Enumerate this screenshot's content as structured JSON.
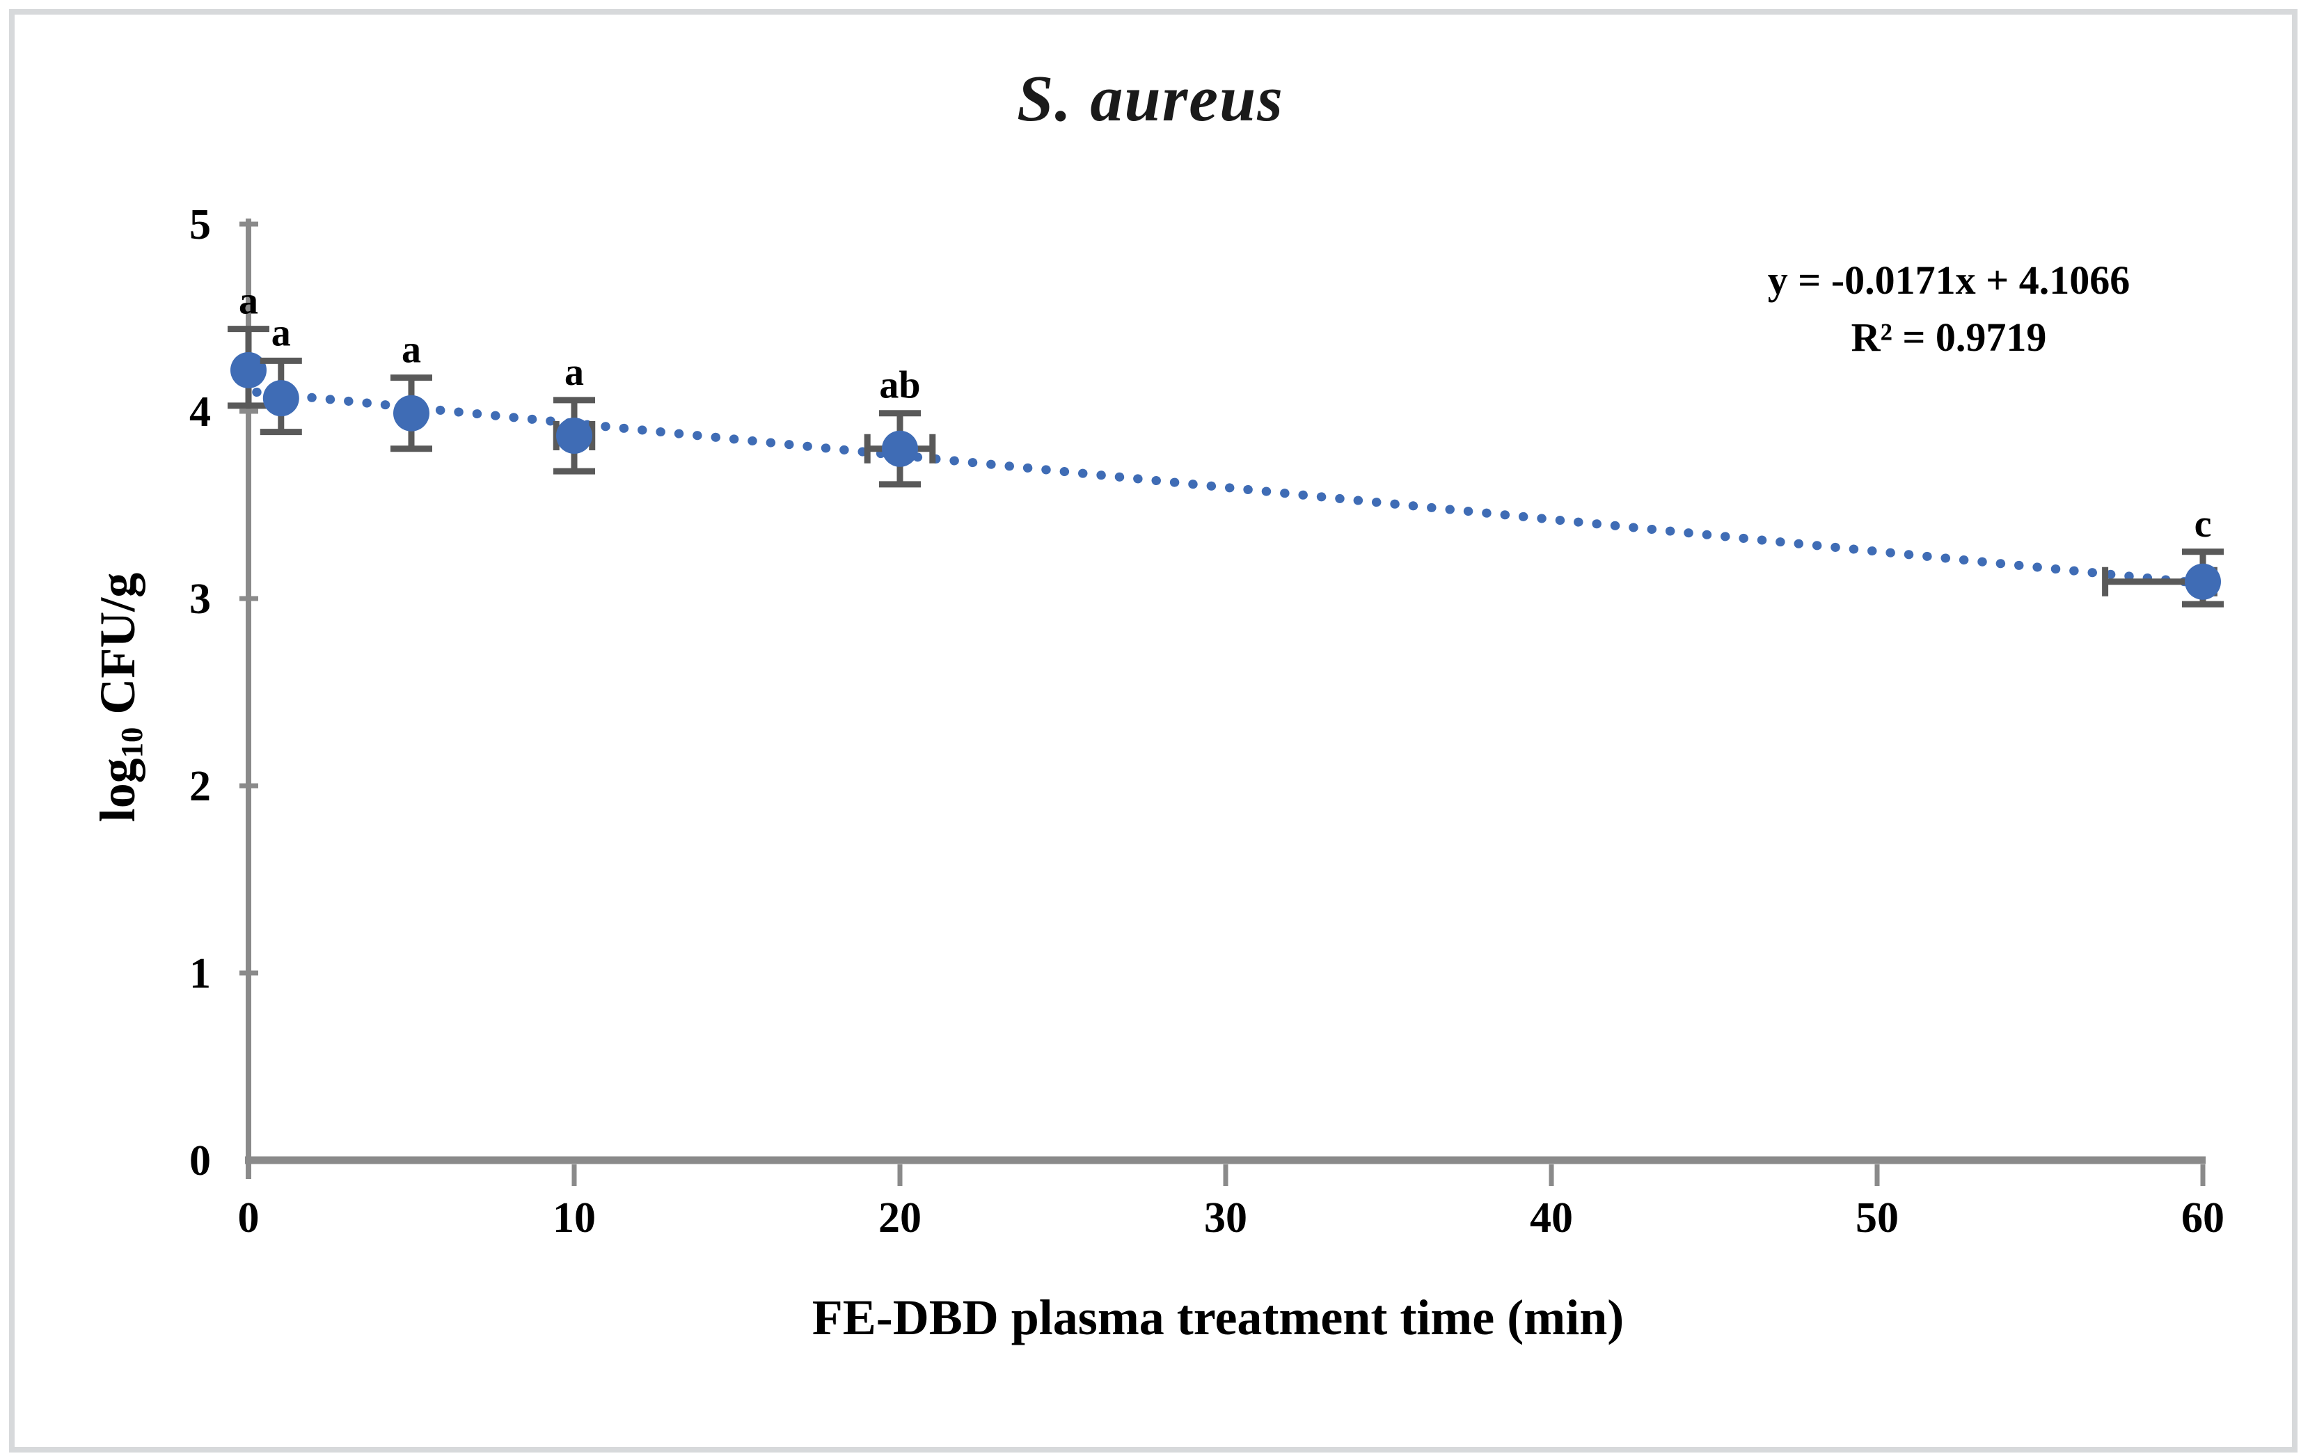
{
  "figure": {
    "title": "S. aureus",
    "ylabel_pre": "log",
    "ylabel_sub": "10",
    "ylabel_post": " CFU/g"
  },
  "chart_data": {
    "type": "scatter",
    "title": "S. aureus",
    "xlabel": "FE-DBD plasma treatment time (min)",
    "ylabel": "log10 CFU/g",
    "xlim": [
      0,
      60
    ],
    "ylim": [
      0,
      5
    ],
    "xticks": [
      0,
      10,
      20,
      30,
      40,
      50,
      60
    ],
    "yticks": [
      0,
      1,
      2,
      3,
      4,
      5
    ],
    "grid": false,
    "legend": false,
    "marker_color": "#3f6cb5",
    "error_bar_color": "#595959",
    "axis_color": "#8a8a8a",
    "series": [
      {
        "name": "S. aureus",
        "points": [
          {
            "x": 0,
            "y": 4.22,
            "err_up": 0.22,
            "err_down": 0.19,
            "xerr_left": 0,
            "xerr_right": 0,
            "label": "a"
          },
          {
            "x": 1,
            "y": 4.07,
            "err_up": 0.2,
            "err_down": 0.18,
            "xerr_left": 0,
            "xerr_right": 0,
            "label": "a"
          },
          {
            "x": 5,
            "y": 3.99,
            "err_up": 0.19,
            "err_down": 0.19,
            "xerr_left": 0,
            "xerr_right": 0,
            "label": "a"
          },
          {
            "x": 10,
            "y": 3.87,
            "err_up": 0.19,
            "err_down": 0.19,
            "xerr_left": 0.55,
            "xerr_right": 0.55,
            "label": "a"
          },
          {
            "x": 20,
            "y": 3.8,
            "err_up": 0.19,
            "err_down": 0.19,
            "xerr_left": 1.0,
            "xerr_right": 1.0,
            "label": "ab"
          },
          {
            "x": 60,
            "y": 3.09,
            "err_up": 0.16,
            "err_down": 0.12,
            "xerr_left": 3.0,
            "xerr_right": 0.35,
            "label": "c"
          }
        ]
      }
    ],
    "trendline": {
      "slope": -0.0171,
      "intercept": 4.1066,
      "x_start": 0.25,
      "x_end": 60.35,
      "style": "dotted",
      "color": "#3f6cb5",
      "equation_label": "y = -0.0171x + 4.1066",
      "r2_label": "R² = 0.9719"
    }
  }
}
